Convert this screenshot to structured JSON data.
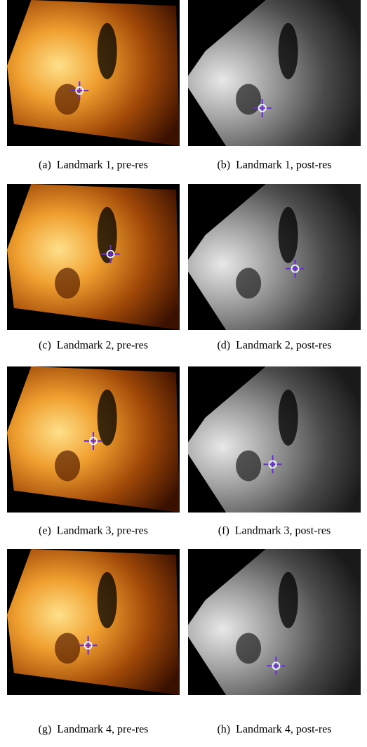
{
  "panels": [
    {
      "label": "(a)",
      "caption": "Landmark 1, pre-res"
    },
    {
      "label": "(b)",
      "caption": "Landmark 1, post-res"
    },
    {
      "label": "(c)",
      "caption": "Landmark 2, pre-res"
    },
    {
      "label": "(d)",
      "caption": "Landmark 2, post-res"
    },
    {
      "label": "(e)",
      "caption": "Landmark 3, pre-res"
    },
    {
      "label": "(f)",
      "caption": "Landmark 3, post-res"
    },
    {
      "label": "(g)",
      "caption": "Landmark 4, pre-res"
    },
    {
      "label": "(h)",
      "caption": "Landmark 4, post-res"
    }
  ]
}
